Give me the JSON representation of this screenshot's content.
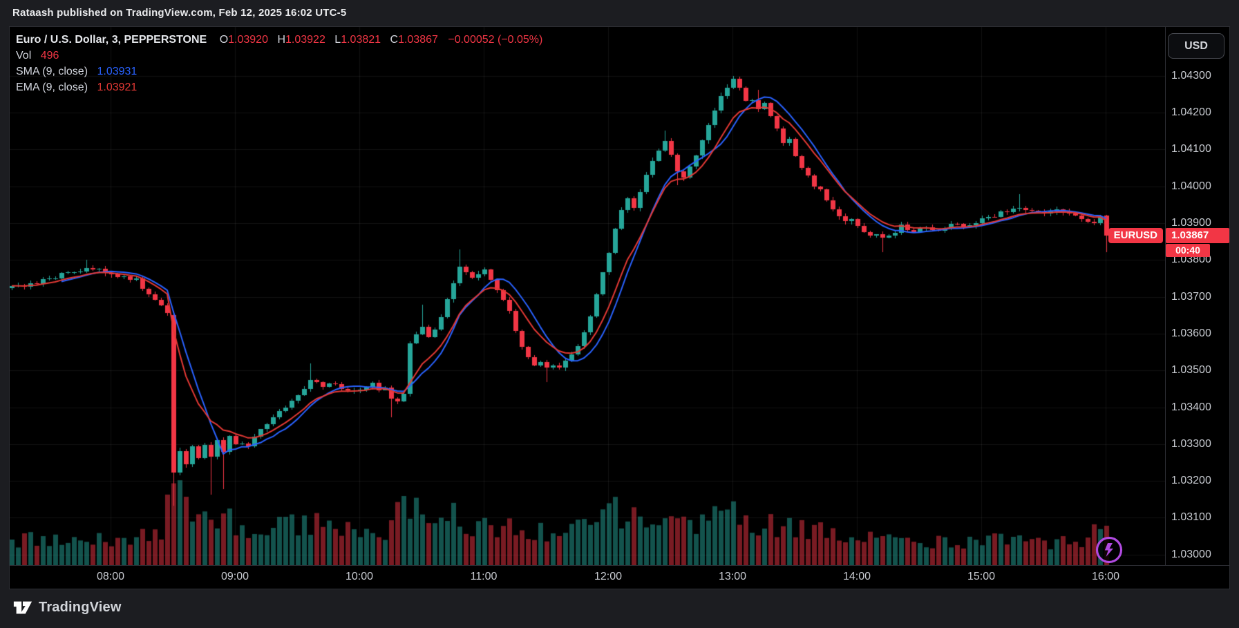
{
  "header": {
    "title": "Rataash published on TradingView.com, Feb 12, 2025 16:02 UTC-5"
  },
  "legend": {
    "symbol_line": "Euro / U.S. Dollar, 3, PEPPERSTONE",
    "o_label": "O",
    "o_value": "1.03920",
    "h_label": "H",
    "h_value": "1.03922",
    "l_label": "L",
    "l_value": "1.03821",
    "c_label": "C",
    "c_value": "1.03867",
    "change": "−0.00052 (−0.05%)",
    "vol_label": "Vol",
    "vol_value": "496",
    "sma_label": "SMA (9, close)",
    "sma_value": "1.03931",
    "ema_label": "EMA (9, close)",
    "ema_value": "1.03921"
  },
  "price_axis": {
    "currency_button": "USD",
    "labels": [
      "1.04300",
      "1.04200",
      "1.04100",
      "1.04000",
      "1.03900",
      "1.03800",
      "1.03700",
      "1.03600",
      "1.03500",
      "1.03400",
      "1.03300",
      "1.03200",
      "1.03100",
      "1.03000"
    ],
    "symbol_badge": "EURUSD",
    "last_price": "1.03867",
    "countdown": "00:40"
  },
  "time_axis": {
    "labels": [
      "08:00",
      "09:00",
      "10:00",
      "11:00",
      "12:00",
      "13:00",
      "14:00",
      "15:00",
      "16:00"
    ]
  },
  "footer": {
    "brand": "TradingView"
  },
  "icons": {
    "quick_trade": "lightning-icon",
    "brand_mark": "tradingview-logo-icon"
  },
  "colors": {
    "up": "#26a69a",
    "down": "#f23645",
    "vol_up": "rgba(38,166,154,0.5)",
    "vol_down": "rgba(242,54,69,0.5)",
    "sma": "#2962ff",
    "ema": "#e53935",
    "grid": "rgba(255,255,255,0.07)",
    "badge": "#f23645",
    "purple": "#b04ae0"
  },
  "chart_data": {
    "type": "candlestick+volume",
    "symbol": "EURUSD",
    "exchange": "PEPPERSTONE",
    "interval_minutes": 3,
    "session_start": "07:12",
    "session_end": "16:00",
    "visible_price_range": [
      1.03,
      1.043
    ],
    "day_high": 1.043,
    "day_low": 1.03132,
    "last_bar": {
      "open": 1.0392,
      "high": 1.03922,
      "low": 1.03821,
      "close": 1.03867,
      "volume": 496
    },
    "overlays": [
      {
        "name": "SMA",
        "period": 9,
        "source": "close",
        "current": 1.03931
      },
      {
        "name": "EMA",
        "period": 9,
        "source": "close",
        "current": 1.03921
      }
    ],
    "close_anchors": [
      [
        "07:12",
        1.03735
      ],
      [
        "07:18",
        1.03728
      ],
      [
        "07:24",
        1.0374
      ],
      [
        "07:30",
        1.03748
      ],
      [
        "07:36",
        1.0376
      ],
      [
        "07:42",
        1.03768
      ],
      [
        "07:48",
        1.03778
      ],
      [
        "07:54",
        1.03772
      ],
      [
        "08:00",
        1.03766
      ],
      [
        "08:03",
        1.03752
      ],
      [
        "08:06",
        1.03758
      ],
      [
        "08:09",
        1.03745
      ],
      [
        "08:12",
        1.03752
      ],
      [
        "08:15",
        1.03728
      ],
      [
        "08:18",
        1.0371
      ],
      [
        "08:21",
        1.03692
      ],
      [
        "08:24",
        1.03672
      ],
      [
        "08:27",
        1.03652
      ],
      [
        "08:33",
        1.03282
      ],
      [
        "08:36",
        1.03242
      ],
      [
        "08:39",
        1.03292
      ],
      [
        "08:42",
        1.03262
      ],
      [
        "08:45",
        1.03302
      ],
      [
        "08:48",
        1.03262
      ],
      [
        "08:51",
        1.03312
      ],
      [
        "08:54",
        1.03282
      ],
      [
        "08:57",
        1.03322
      ],
      [
        "09:00",
        1.03302
      ],
      [
        "09:06",
        1.03292
      ],
      [
        "09:12",
        1.03342
      ],
      [
        "09:18",
        1.03372
      ],
      [
        "09:24",
        1.03402
      ],
      [
        "09:30",
        1.03432
      ],
      [
        "09:36",
        1.03472
      ],
      [
        "09:42",
        1.03458
      ],
      [
        "09:48",
        1.03468
      ],
      [
        "09:54",
        1.03442
      ],
      [
        "10:00",
        1.03452
      ],
      [
        "10:06",
        1.03462
      ],
      [
        "10:09",
        1.03442
      ],
      [
        "10:12",
        1.03448
      ],
      [
        "10:15",
        1.03428
      ],
      [
        "10:18",
        1.03412
      ],
      [
        "10:21",
        1.03438
      ],
      [
        "10:24",
        1.03578
      ],
      [
        "10:27",
        1.03598
      ],
      [
        "10:30",
        1.03618
      ],
      [
        "10:33",
        1.03595
      ],
      [
        "10:36",
        1.03608
      ],
      [
        "10:39",
        1.03648
      ],
      [
        "10:42",
        1.03688
      ],
      [
        "10:45",
        1.03738
      ],
      [
        "10:48",
        1.03778
      ],
      [
        "10:51",
        1.03762
      ],
      [
        "10:54",
        1.03748
      ],
      [
        "10:57",
        1.03765
      ],
      [
        "11:00",
        1.03772
      ],
      [
        "11:03",
        1.03748
      ],
      [
        "11:06",
        1.03722
      ],
      [
        "11:09",
        1.03692
      ],
      [
        "11:12",
        1.03658
      ],
      [
        "11:15",
        1.03612
      ],
      [
        "11:18",
        1.03568
      ],
      [
        "11:21",
        1.03532
      ],
      [
        "11:24",
        1.03512
      ],
      [
        "11:27",
        1.03522
      ],
      [
        "11:30",
        1.03506
      ],
      [
        "11:33",
        1.03516
      ],
      [
        "11:36",
        1.03508
      ],
      [
        "11:39",
        1.03522
      ],
      [
        "11:42",
        1.03545
      ],
      [
        "11:45",
        1.03568
      ],
      [
        "11:48",
        1.03602
      ],
      [
        "11:51",
        1.03645
      ],
      [
        "11:54",
        1.03702
      ],
      [
        "11:57",
        1.03762
      ],
      [
        "12:00",
        1.03822
      ],
      [
        "12:03",
        1.03882
      ],
      [
        "12:06",
        1.03932
      ],
      [
        "12:09",
        1.03965
      ],
      [
        "12:12",
        1.03945
      ],
      [
        "12:15",
        1.03988
      ],
      [
        "12:18",
        1.04032
      ],
      [
        "12:21",
        1.04068
      ],
      [
        "12:24",
        1.04098
      ],
      [
        "12:27",
        1.04118
      ],
      [
        "12:30",
        1.04082
      ],
      [
        "12:33",
        1.04042
      ],
      [
        "12:36",
        1.04022
      ],
      [
        "12:39",
        1.04052
      ],
      [
        "12:42",
        1.04082
      ],
      [
        "12:45",
        1.04122
      ],
      [
        "12:48",
        1.04162
      ],
      [
        "12:51",
        1.04202
      ],
      [
        "12:54",
        1.04242
      ],
      [
        "12:57",
        1.04272
      ],
      [
        "13:00",
        1.04288
      ],
      [
        "13:03",
        1.04262
      ],
      [
        "13:06",
        1.04232
      ],
      [
        "13:09",
        1.04238
      ],
      [
        "13:12",
        1.04212
      ],
      [
        "13:15",
        1.04222
      ],
      [
        "13:18",
        1.04188
      ],
      [
        "13:21",
        1.04152
      ],
      [
        "13:24",
        1.04122
      ],
      [
        "13:27",
        1.04132
      ],
      [
        "13:30",
        1.04082
      ],
      [
        "13:33",
        1.04052
      ],
      [
        "13:36",
        1.04032
      ],
      [
        "13:39",
        1.04002
      ],
      [
        "13:42",
        1.03992
      ],
      [
        "13:45",
        1.03962
      ],
      [
        "13:48",
        1.03942
      ],
      [
        "13:51",
        1.03922
      ],
      [
        "13:54",
        1.03902
      ],
      [
        "13:57",
        1.03912
      ],
      [
        "14:00",
        1.03892
      ],
      [
        "14:03",
        1.03882
      ],
      [
        "14:06",
        1.03862
      ],
      [
        "14:09",
        1.03872
      ],
      [
        "14:12",
        1.03856
      ],
      [
        "14:15",
        1.03862
      ],
      [
        "14:18",
        1.03878
      ],
      [
        "14:21",
        1.03892
      ],
      [
        "14:24",
        1.03882
      ],
      [
        "14:27",
        1.03872
      ],
      [
        "14:30",
        1.03882
      ],
      [
        "14:33",
        1.03892
      ],
      [
        "14:36",
        1.03886
      ],
      [
        "14:39",
        1.03878
      ],
      [
        "14:42",
        1.03886
      ],
      [
        "14:45",
        1.03896
      ],
      [
        "14:48",
        1.03902
      ],
      [
        "14:51",
        1.03892
      ],
      [
        "14:54",
        1.03898
      ],
      [
        "15:00",
        1.03912
      ],
      [
        "15:06",
        1.03922
      ],
      [
        "15:12",
        1.0393
      ],
      [
        "15:18",
        1.03942
      ],
      [
        "15:24",
        1.03936
      ],
      [
        "15:30",
        1.03928
      ],
      [
        "15:36",
        1.03932
      ],
      [
        "15:42",
        1.03922
      ],
      [
        "15:48",
        1.03912
      ],
      [
        "15:51",
        1.03906
      ],
      [
        "15:54",
        1.03898
      ],
      [
        "15:57",
        1.0392
      ]
    ],
    "wick_overrides": {
      "07:48": {
        "h": 1.038
      },
      "08:48": {
        "l": 1.03162
      },
      "08:54": {
        "l": 1.03178
      },
      "09:36": {
        "h": 1.0352
      },
      "10:15": {
        "l": 1.03372
      },
      "10:30": {
        "h": 1.03678
      },
      "10:48": {
        "h": 1.03828
      },
      "11:30": {
        "l": 1.03468
      },
      "12:27": {
        "h": 1.04152
      },
      "12:33": {
        "l": 1.04002
      },
      "13:00": {
        "h": 1.043
      },
      "13:12": {
        "h": 1.04262
      },
      "14:12": {
        "l": 1.03822
      },
      "15:18": {
        "h": 1.03978
      }
    },
    "forced_bars": {
      "08:30": {
        "o": 1.0365,
        "h": 1.03662,
        "l": 1.03132,
        "c": 1.03222
      },
      "16:00": {
        "o": 1.0392,
        "h": 1.03922,
        "l": 1.03821,
        "c": 1.03867
      }
    },
    "volume_anchors": [
      [
        "07:12",
        330
      ],
      [
        "07:30",
        300
      ],
      [
        "07:48",
        360
      ],
      [
        "08:06",
        310
      ],
      [
        "08:24",
        420
      ],
      [
        "08:30",
        1030
      ],
      [
        "08:36",
        820
      ],
      [
        "08:42",
        700
      ],
      [
        "08:48",
        640
      ],
      [
        "08:54",
        560
      ],
      [
        "09:00",
        520
      ],
      [
        "09:12",
        460
      ],
      [
        "09:24",
        500
      ],
      [
        "09:36",
        520
      ],
      [
        "09:48",
        440
      ],
      [
        "10:00",
        420
      ],
      [
        "10:12",
        460
      ],
      [
        "10:21",
        880
      ],
      [
        "10:30",
        560
      ],
      [
        "10:45",
        600
      ],
      [
        "11:00",
        480
      ],
      [
        "11:15",
        440
      ],
      [
        "11:30",
        420
      ],
      [
        "11:45",
        520
      ],
      [
        "11:57",
        700
      ],
      [
        "12:06",
        640
      ],
      [
        "12:18",
        560
      ],
      [
        "12:30",
        600
      ],
      [
        "12:45",
        560
      ],
      [
        "13:00",
        620
      ],
      [
        "13:15",
        520
      ],
      [
        "13:30",
        480
      ],
      [
        "13:45",
        420
      ],
      [
        "14:00",
        380
      ],
      [
        "14:15",
        340
      ],
      [
        "14:30",
        300
      ],
      [
        "14:45",
        280
      ],
      [
        "15:00",
        320
      ],
      [
        "15:15",
        300
      ],
      [
        "15:30",
        260
      ],
      [
        "15:45",
        300
      ],
      [
        "15:57",
        420
      ],
      [
        "16:00",
        496
      ]
    ],
    "volume_forced": {
      "08:30": 1030,
      "16:00": 496
    }
  }
}
